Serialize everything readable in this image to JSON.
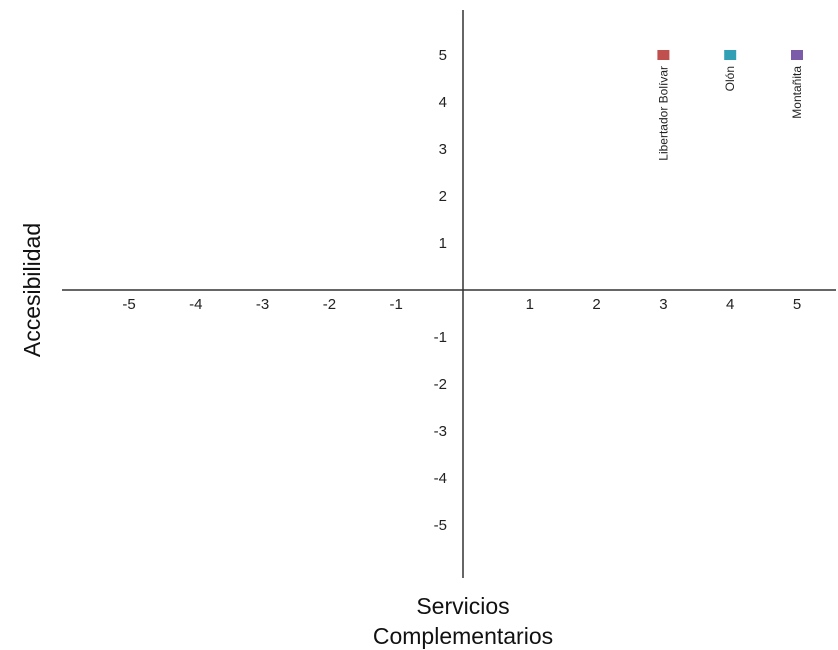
{
  "chart_data": {
    "type": "scatter",
    "xlabel_lines": [
      "Servicios",
      "Complementarios"
    ],
    "ylabel": "Accesibilidad",
    "xlim": [
      -6,
      5.6
    ],
    "ylim": [
      -6,
      6
    ],
    "x_ticks": [
      -5,
      -4,
      -3,
      -2,
      -1,
      1,
      2,
      3,
      4,
      5
    ],
    "y_ticks": [
      5,
      4,
      3,
      2,
      1,
      -1,
      -2,
      -3,
      -4,
      -5
    ],
    "grid": false,
    "points": [
      {
        "label": "Libertador Bolívar",
        "x": 3,
        "y": 5,
        "color": "#c0504d"
      },
      {
        "label": "Olón",
        "x": 4,
        "y": 5,
        "color": "#31a0b5"
      },
      {
        "label": "Montañita",
        "x": 5,
        "y": 5,
        "color": "#7b5ca8"
      }
    ]
  }
}
